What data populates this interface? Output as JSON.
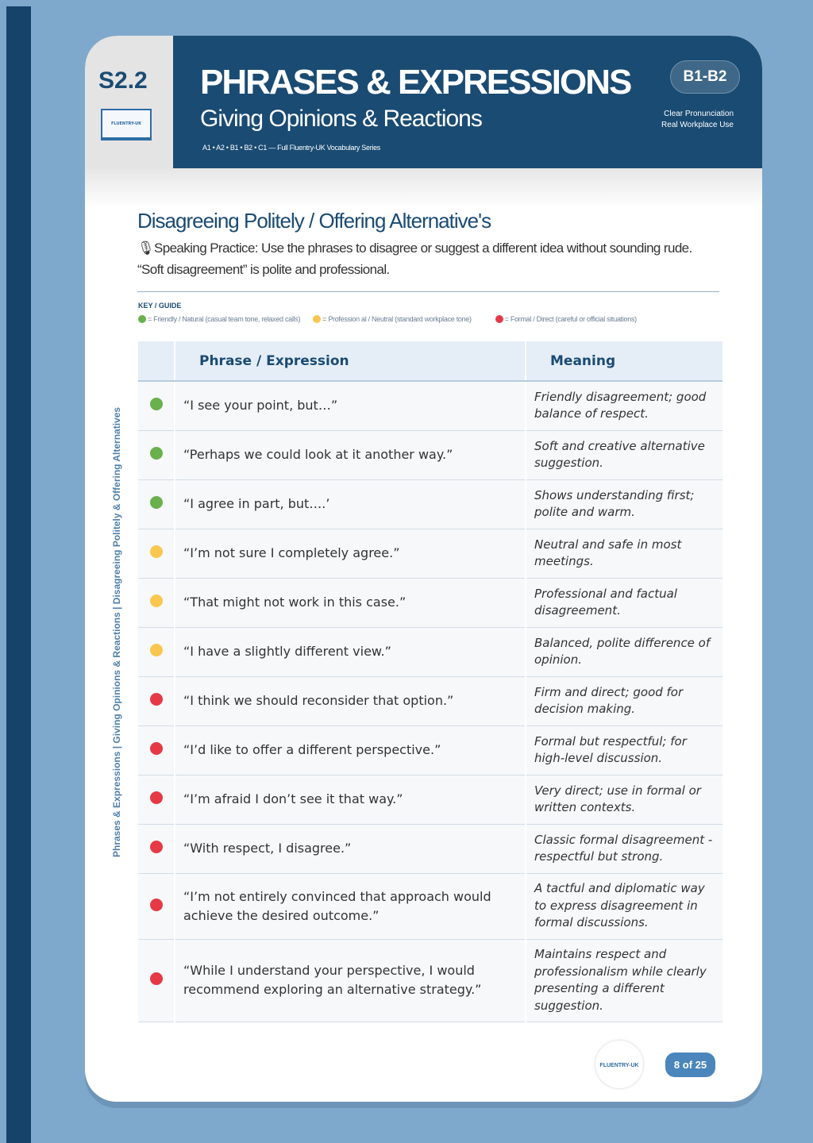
{
  "header": {
    "code": "S2.2",
    "title": "PHRASES & EXPRESSIONS",
    "subtitle": "Giving Opinions & Reactions",
    "series": "A1 • A2 • B1 • B2 • C1 — Full Fluentry-UK Vocabulary Series",
    "level": "B1-B2",
    "tags": [
      "Clear Pronunciation",
      "Real Workplace Use"
    ],
    "logo_text": "FLUENTRY-UK"
  },
  "section": {
    "title": "Disagreeing Politely / Offering Alternative's",
    "description": "🎙Speaking Practice: Use the phrases to disagree or suggest a different idea without sounding rude. “Soft disagreement” is polite and professional."
  },
  "key": {
    "title": "KEY / GUIDE",
    "items": [
      {
        "color": "#6ab04c",
        "label": "= Friendly / Natural (casual team tone, relaxed calls)"
      },
      {
        "color": "#f9c74f",
        "label": "= Profession al / Neutral (standard workplace tone)"
      },
      {
        "color": "#e63946",
        "label": "= Formal / Direct (careful or official situations)"
      }
    ]
  },
  "table": {
    "headers": [
      "",
      "Phrase / Expression",
      "Meaning"
    ],
    "rows": [
      {
        "level": "green",
        "phrase": "“I see your point, but…”",
        "meaning": "Friendly disagreement; good balance of respect."
      },
      {
        "level": "green",
        "phrase": "“Perhaps we could look at it another way.”",
        "meaning": "Soft and creative alternative suggestion."
      },
      {
        "level": "green",
        "phrase": "“I agree in part, but….’",
        "meaning": "Shows understanding first; polite and warm."
      },
      {
        "level": "yellow",
        "phrase": "“I’m not sure I completely agree.”",
        "meaning": "Neutral and safe in most meetings."
      },
      {
        "level": "yellow",
        "phrase": "“That might not work in this case.”",
        "meaning": "Professional and factual disagreement."
      },
      {
        "level": "yellow",
        "phrase": "“I have a slightly different view.”",
        "meaning": "Balanced, polite difference of opinion."
      },
      {
        "level": "red",
        "phrase": "“I think we should reconsider that option.”",
        "meaning": "Firm and direct; good for decision making."
      },
      {
        "level": "red",
        "phrase": "“I’d like to offer a different perspective.”",
        "meaning": "Formal but respectful; for high-level discussion."
      },
      {
        "level": "red",
        "phrase": "“I’m afraid I don’t see it that way.”",
        "meaning": "Very direct; use in formal or written contexts."
      },
      {
        "level": "red",
        "phrase": "“With respect, I disagree.”",
        "meaning": "Classic formal disagreement - respectful but strong."
      },
      {
        "level": "red",
        "phrase": "“I’m not entirely convinced that approach would achieve the desired outcome.”",
        "meaning": "A tactful and diplomatic way to express disagreement in formal discussions."
      },
      {
        "level": "red",
        "phrase": "“While I understand your perspective, I would recommend exploring an alternative strategy.”",
        "meaning": "Maintains respect and professionalism while clearly presenting a different suggestion."
      }
    ]
  },
  "colors": {
    "green": "#6ab04c",
    "yellow": "#f9c74f",
    "red": "#e63946",
    "navy": "#1a4b73"
  },
  "side_text": "Phrases & Expressions | Giving Opinions & Reactions | Disagreeing Politely & Offering Alternatives",
  "footer": {
    "page": "8 of 25"
  }
}
